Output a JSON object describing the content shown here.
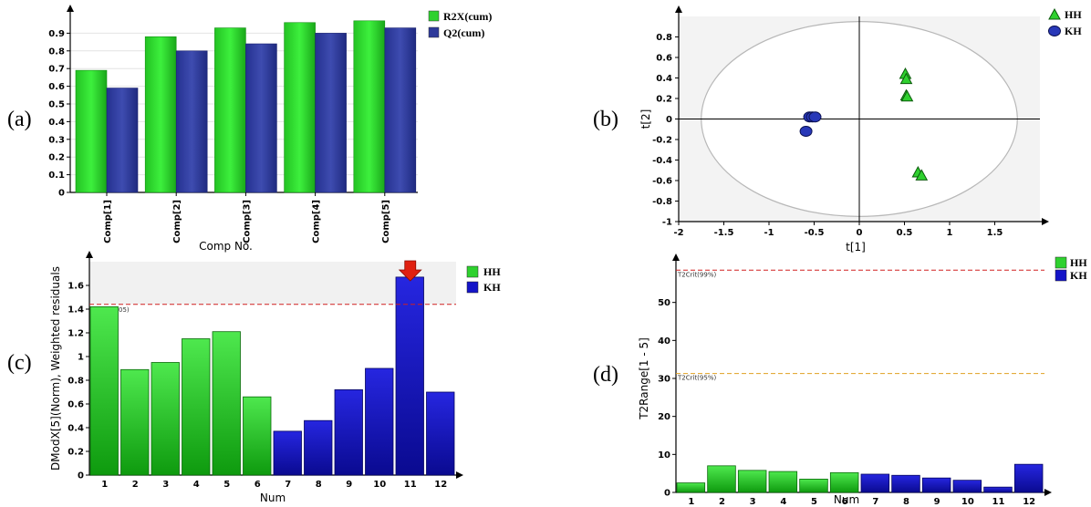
{
  "panel_labels": [
    "(a)",
    "(b)",
    "(c)",
    "(d)"
  ],
  "colors": {
    "green": "#2fd12f",
    "green_dark": "#0a8a0a",
    "blue": "#2e3a9a",
    "blue_bright": "#1414c8",
    "red_line": "#d02020",
    "orange_line": "#e0a020",
    "arrow": "#e02010"
  },
  "chart_data": [
    {
      "id": "a",
      "type": "bar",
      "categories": [
        "Comp[1]",
        "Comp[2]",
        "Comp[3]",
        "Comp[4]",
        "Comp[5]"
      ],
      "series": [
        {
          "name": "R2X(cum)",
          "values": [
            0.69,
            0.88,
            0.93,
            0.96,
            0.97
          ]
        },
        {
          "name": "Q2(cum)",
          "values": [
            0.59,
            0.8,
            0.84,
            0.9,
            0.93
          ]
        }
      ],
      "xlabel": "Comp No.",
      "ylabel": "",
      "ylim": [
        0,
        1.0
      ],
      "yticks": [
        0,
        0.1,
        0.2,
        0.3,
        0.4,
        0.5,
        0.6,
        0.7,
        0.8,
        0.9
      ],
      "legend": "top-right"
    },
    {
      "id": "b",
      "type": "scatter",
      "series": [
        {
          "name": "HH",
          "marker": "triangle",
          "points": [
            [
              0.51,
              0.44
            ],
            [
              0.52,
              0.39
            ],
            [
              0.52,
              0.23
            ],
            [
              0.53,
              0.22
            ],
            [
              0.65,
              -0.52
            ],
            [
              0.69,
              -0.55
            ]
          ]
        },
        {
          "name": "KH",
          "marker": "circle",
          "points": [
            [
              -0.55,
              0.02
            ],
            [
              -0.52,
              0.02
            ],
            [
              -0.49,
              0.02
            ],
            [
              -0.59,
              -0.12
            ]
          ]
        }
      ],
      "xlabel": "t[1]",
      "ylabel": "t[2]",
      "xlim": [
        -2,
        2
      ],
      "ylim": [
        -1,
        1
      ],
      "xticks": [
        -2,
        -1.5,
        -1,
        -0.5,
        0,
        0.5,
        1,
        1.5
      ],
      "yticks": [
        -1,
        -0.8,
        -0.6,
        -0.4,
        -0.2,
        0,
        0.2,
        0.4,
        0.6,
        0.8
      ],
      "ellipse": {
        "rx": 1.75,
        "ry": 0.95
      },
      "legend": "top-right"
    },
    {
      "id": "c",
      "type": "bar",
      "categories": [
        "1",
        "2",
        "3",
        "4",
        "5",
        "6",
        "7",
        "8",
        "9",
        "10",
        "11",
        "12"
      ],
      "values": [
        1.42,
        0.89,
        0.95,
        1.15,
        1.21,
        0.66,
        0.37,
        0.46,
        0.72,
        0.9,
        1.67,
        0.7
      ],
      "groups": [
        "HH",
        "HH",
        "HH",
        "HH",
        "HH",
        "HH",
        "KH",
        "KH",
        "KH",
        "KH",
        "KH",
        "KH"
      ],
      "series_names": [
        "HH",
        "KH"
      ],
      "xlabel": "Num",
      "ylabel": "DModX[5](Norm), Weighted residuals",
      "ylim": [
        0,
        1.8
      ],
      "yticks": [
        0,
        0.2,
        0.4,
        0.6,
        0.8,
        1,
        1.2,
        1.4,
        1.6
      ],
      "critical_line": 1.44,
      "critical_label": "05)",
      "arrow_at": "11",
      "legend": "top-right"
    },
    {
      "id": "d",
      "type": "bar",
      "categories": [
        "1",
        "2",
        "3",
        "4",
        "5",
        "6",
        "7",
        "8",
        "9",
        "10",
        "11",
        "12"
      ],
      "values": [
        2.5,
        7.0,
        5.8,
        5.5,
        3.5,
        5.2,
        4.8,
        4.5,
        3.8,
        3.2,
        1.4,
        7.4
      ],
      "groups": [
        "HH",
        "HH",
        "HH",
        "HH",
        "HH",
        "HH",
        "KH",
        "KH",
        "KH",
        "KH",
        "KH",
        "KH"
      ],
      "series_names": [
        "HH",
        "KH"
      ],
      "xlabel": "Num",
      "ylabel": "T2Range[1 - 5]",
      "ylim": [
        0,
        60
      ],
      "yticks": [
        0,
        10,
        20,
        30,
        40,
        50
      ],
      "lines": [
        {
          "value": 58.5,
          "label": "T2Crit(99%)",
          "color_key": "red_line"
        },
        {
          "value": 31.3,
          "label": "T2Crit(95%)",
          "color_key": "orange_line"
        }
      ],
      "legend": "top-right"
    }
  ]
}
